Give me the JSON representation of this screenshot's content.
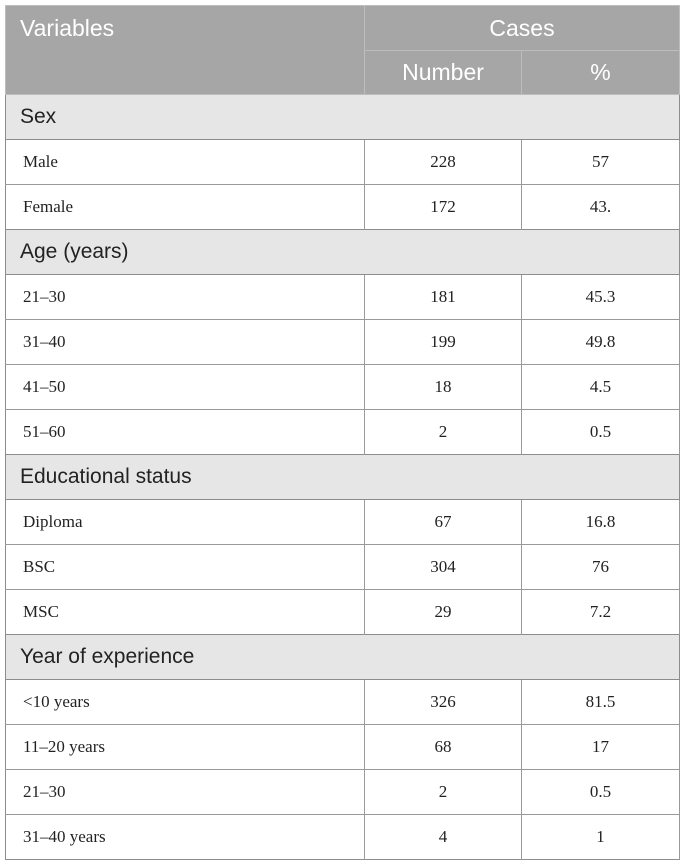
{
  "header": {
    "variables": "Variables",
    "cases": "Cases",
    "number": "Number",
    "percent": "%"
  },
  "sections": [
    {
      "title": "Sex",
      "rows": [
        {
          "label": "Male",
          "number": "228",
          "percent": "57"
        },
        {
          "label": "Female",
          "number": "172",
          "percent": "43."
        }
      ]
    },
    {
      "title": "Age (years)",
      "rows": [
        {
          "label": "21–30",
          "number": "181",
          "percent": "45.3"
        },
        {
          "label": "31–40",
          "number": "199",
          "percent": "49.8"
        },
        {
          "label": "41–50",
          "number": "18",
          "percent": "4.5"
        },
        {
          "label": "51–60",
          "number": "2",
          "percent": "0.5"
        }
      ]
    },
    {
      "title": "Educational status",
      "rows": [
        {
          "label": "Diploma",
          "number": "67",
          "percent": "16.8"
        },
        {
          "label": "BSC",
          "number": "304",
          "percent": "76"
        },
        {
          "label": "MSC",
          "number": "29",
          "percent": "7.2"
        }
      ]
    },
    {
      "title": "Year of experience",
      "rows": [
        {
          "label": "<10 years",
          "number": "326",
          "percent": "81.5"
        },
        {
          "label": "11–20 years",
          "number": "68",
          "percent": "17"
        },
        {
          "label": "21–30",
          "number": "2",
          "percent": "0.5"
        },
        {
          "label": "31–40 years",
          "number": "4",
          "percent": "1"
        }
      ]
    }
  ]
}
